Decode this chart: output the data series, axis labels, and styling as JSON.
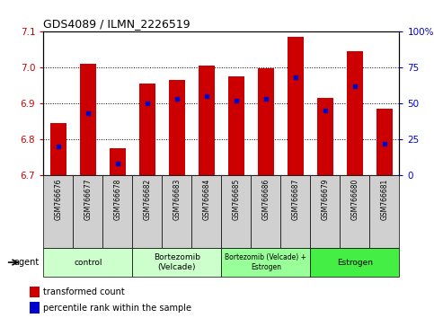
{
  "title": "GDS4089 / ILMN_2226519",
  "samples": [
    "GSM766676",
    "GSM766677",
    "GSM766678",
    "GSM766682",
    "GSM766683",
    "GSM766684",
    "GSM766685",
    "GSM766686",
    "GSM766687",
    "GSM766679",
    "GSM766680",
    "GSM766681"
  ],
  "red_values": [
    6.845,
    7.01,
    6.775,
    6.955,
    6.965,
    7.005,
    6.975,
    6.998,
    7.085,
    6.915,
    7.045,
    6.885
  ],
  "blue_values": [
    20,
    43,
    8,
    50,
    53,
    55,
    52,
    53,
    68,
    45,
    62,
    22
  ],
  "ylim_left": [
    6.7,
    7.1
  ],
  "ylim_right": [
    0,
    100
  ],
  "yticks_left": [
    6.7,
    6.8,
    6.9,
    7.0,
    7.1
  ],
  "yticks_right": [
    0,
    25,
    50,
    75,
    100
  ],
  "ytick_labels_right": [
    "0",
    "25",
    "50",
    "75",
    "100%"
  ],
  "bar_color_red": "#cc0000",
  "bar_color_blue": "#0000cc",
  "bar_width": 0.55,
  "legend_red_label": "transformed count",
  "legend_blue_label": "percentile rank within the sample",
  "group_labels": [
    "control",
    "Bortezomib\n(Velcade)",
    "Bortezomib (Velcade) +\nEstrogen",
    "Estrogen"
  ],
  "group_ranges": [
    [
      0,
      2
    ],
    [
      3,
      5
    ],
    [
      6,
      8
    ],
    [
      9,
      11
    ]
  ],
  "group_colors": [
    "#ccffcc",
    "#ccffcc",
    "#99ff99",
    "#44ee44"
  ],
  "sample_box_color": "#d0d0d0",
  "background_color": "#ffffff"
}
